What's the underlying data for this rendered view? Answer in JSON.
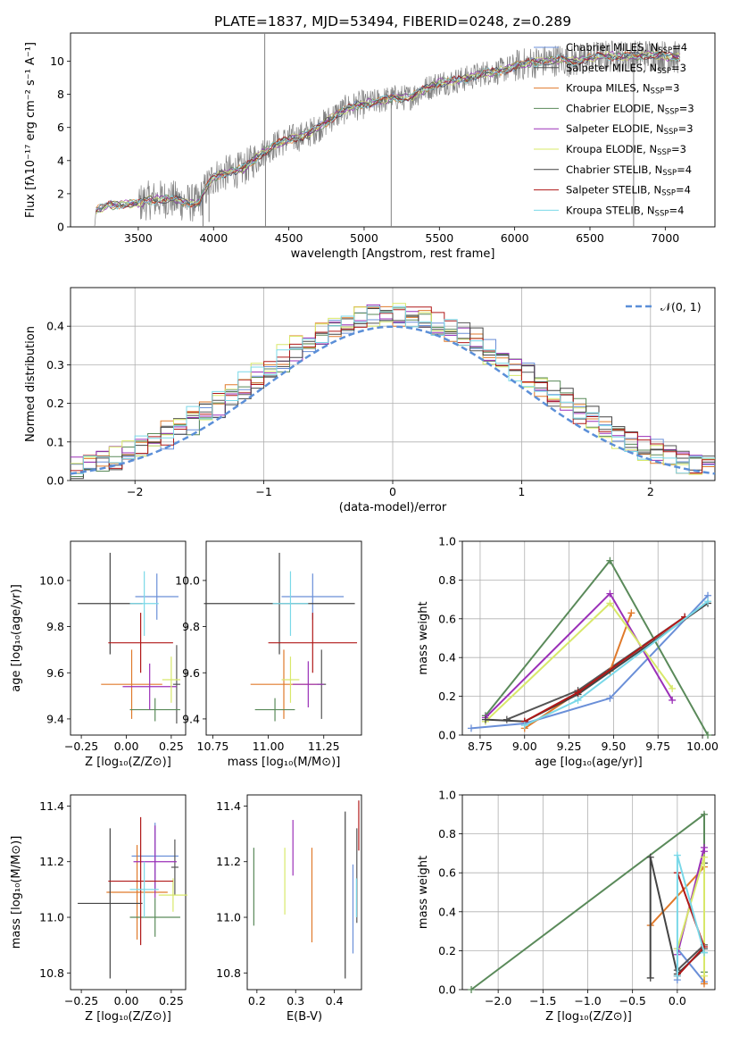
{
  "figure": {
    "title": "PLATE=1837, MJD=53494, FIBERID=0248, z=0.289"
  },
  "colors": {
    "Chabrier MILES": "#6a8fd8",
    "Salpeter MILES": "#555555",
    "Kroupa MILES": "#e07a2b",
    "Chabrier ELODIE": "#5a8a5a",
    "Salpeter ELODIE": "#9b30b8",
    "Kroupa ELODIE": "#d8e86a",
    "Chabrier STELIB": "#444444",
    "Salpeter STELIB": "#b01818",
    "Kroupa STELIB": "#7ad8e8",
    "data_spectrum": "#808080",
    "normal_curve": "#5b8fd8"
  },
  "chart_data": [
    {
      "id": "spectrum",
      "type": "line",
      "xlabel": "wavelength [Angstrom, rest frame]",
      "ylabel": "Flux [fλ10⁻¹⁷ erg cm⁻² s⁻¹ A⁻¹]",
      "xlim": [
        3050,
        7330
      ],
      "ylim": [
        0,
        11.7
      ],
      "xticks": [
        3500,
        4000,
        4500,
        5000,
        5500,
        6000,
        6500,
        7000
      ],
      "yticks": [
        0,
        2,
        4,
        6,
        8,
        10
      ],
      "legend": "top-right",
      "legend_entries": [
        {
          "model": "Chabrier MILES",
          "label": "Chabrier MILES, N",
          "sub": "SSP",
          "tail": "=4"
        },
        {
          "model": "Salpeter MILES",
          "label": "Salpeter MILES, N",
          "sub": "SSP",
          "tail": "=3"
        },
        {
          "model": "Kroupa MILES",
          "label": "Kroupa MILES, N",
          "sub": "SSP",
          "tail": "=3"
        },
        {
          "model": "Chabrier ELODIE",
          "label": "Chabrier ELODIE, N",
          "sub": "SSP",
          "tail": "=3"
        },
        {
          "model": "Salpeter ELODIE",
          "label": "Salpeter ELODIE, N",
          "sub": "SSP",
          "tail": "=3"
        },
        {
          "model": "Kroupa ELODIE",
          "label": "Kroupa ELODIE, N",
          "sub": "SSP",
          "tail": "=3"
        },
        {
          "model": "Chabrier STELIB",
          "label": "Chabrier STELIB, N",
          "sub": "SSP",
          "tail": "=4"
        },
        {
          "model": "Salpeter STELIB",
          "label": "Salpeter STELIB, N",
          "sub": "SSP",
          "tail": "=4"
        },
        {
          "model": "Kroupa STELIB",
          "label": "Kroupa STELIB, N",
          "sub": "SSP",
          "tail": "=4"
        }
      ],
      "continuum": [
        [
          3210,
          0
        ],
        [
          3220,
          1.0
        ],
        [
          3300,
          1.3
        ],
        [
          3500,
          1.4
        ],
        [
          3560,
          1.6
        ],
        [
          3700,
          1.7
        ],
        [
          3800,
          1.5
        ],
        [
          3900,
          1.4
        ],
        [
          3950,
          2.3
        ],
        [
          4000,
          3.0
        ],
        [
          4100,
          3.3
        ],
        [
          4200,
          3.5
        ],
        [
          4300,
          4.3
        ],
        [
          4400,
          4.9
        ],
        [
          4500,
          5.3
        ],
        [
          4600,
          5.5
        ],
        [
          4700,
          6.0
        ],
        [
          4800,
          6.7
        ],
        [
          4900,
          7.2
        ],
        [
          5000,
          7.4
        ],
        [
          5100,
          7.6
        ],
        [
          5200,
          7.8
        ],
        [
          5300,
          7.8
        ],
        [
          5400,
          8.3
        ],
        [
          5500,
          8.7
        ],
        [
          5600,
          8.8
        ],
        [
          5700,
          9.0
        ],
        [
          5800,
          9.3
        ],
        [
          5900,
          9.4
        ],
        [
          6000,
          9.7
        ],
        [
          6100,
          9.9
        ],
        [
          6200,
          10.0
        ],
        [
          6300,
          10.1
        ],
        [
          6400,
          10.0
        ],
        [
          6500,
          10.2
        ],
        [
          6600,
          10.3
        ],
        [
          6700,
          10.3
        ],
        [
          6800,
          10.3
        ],
        [
          6900,
          10.4
        ],
        [
          7000,
          10.3
        ],
        [
          7100,
          10.2
        ]
      ],
      "spikes": [
        [
          4340,
          11.7
        ],
        [
          4345,
          0
        ],
        [
          5180,
          0
        ],
        [
          6790,
          0
        ],
        [
          3930,
          0
        ],
        [
          3970,
          0.3
        ]
      ]
    },
    {
      "id": "residuals",
      "type": "area",
      "xlabel": "(data-model)/error",
      "ylabel": "Normed distribution",
      "xlim": [
        -2.5,
        2.5
      ],
      "ylim": [
        0,
        0.5
      ],
      "xticks": [
        -2,
        -1,
        0,
        1,
        2
      ],
      "yticks": [
        0.0,
        0.1,
        0.2,
        0.3,
        0.4
      ],
      "legend": "top-right",
      "legend_label": "𝒩(0, 1)",
      "bin_width": 0.1,
      "bin_start": -2.5,
      "gauss": {
        "mean": 0,
        "sigma": 1
      }
    },
    {
      "id": "age_vs_Z",
      "type": "scatter",
      "xlabel": "Z [log₁₀(Z/Z⊙)]",
      "ylabel": "age  [log₁₀(age/yr)]",
      "xlim": [
        -0.31,
        0.33
      ],
      "ylim": [
        9.33,
        10.17
      ],
      "xticks": [
        -0.25,
        0.0,
        0.25
      ],
      "xticklabels": [
        "−0.25",
        "0.00",
        "0.25"
      ],
      "yticks": [
        9.4,
        9.6,
        9.8,
        10.0
      ],
      "points": [
        {
          "model": "Chabrier MILES",
          "x": 0.17,
          "xerr": 0.12,
          "y": 9.93,
          "yerr": 0.1
        },
        {
          "model": "Salpeter MILES",
          "x": 0.28,
          "xerr": 0.02,
          "y": 9.55,
          "yerr": 0.17
        },
        {
          "model": "Kroupa MILES",
          "x": 0.03,
          "xerr": 0.17,
          "y": 9.55,
          "yerr": 0.15
        },
        {
          "model": "Chabrier ELODIE",
          "x": 0.16,
          "xerr": 0.14,
          "y": 9.44,
          "yerr": 0.05
        },
        {
          "model": "Salpeter ELODIE",
          "x": 0.13,
          "xerr": 0.15,
          "y": 9.54,
          "yerr": 0.1
        },
        {
          "model": "Kroupa ELODIE",
          "x": 0.25,
          "xerr": 0.05,
          "y": 9.57,
          "yerr": 0.1
        },
        {
          "model": "Chabrier STELIB",
          "x": -0.09,
          "xerr": 0.18,
          "y": 9.9,
          "yerr": 0.22
        },
        {
          "model": "Salpeter STELIB",
          "x": 0.08,
          "xerr": 0.18,
          "y": 9.73,
          "yerr": 0.13
        },
        {
          "model": "Kroupa STELIB",
          "x": 0.1,
          "xerr": 0.08,
          "y": 9.9,
          "yerr": 0.14
        }
      ]
    },
    {
      "id": "age_vs_mass",
      "type": "scatter",
      "xlabel": "mass [log₁₀(M/M⊙)]",
      "ylabel": "",
      "xlim": [
        10.72,
        11.42
      ],
      "ylim": [
        9.33,
        10.17
      ],
      "xticks": [
        10.75,
        11.0,
        11.25
      ],
      "xticklabels": [
        "10.75",
        "11.00",
        "11.25"
      ],
      "yticks": [
        9.4,
        9.6,
        9.8,
        10.0
      ],
      "points": [
        {
          "model": "Chabrier MILES",
          "x": 11.2,
          "xerr": 0.14,
          "y": 9.93,
          "yerr": 0.1
        },
        {
          "model": "Salpeter MILES",
          "x": 11.24,
          "xerr": 0.02,
          "y": 9.55,
          "yerr": 0.15
        },
        {
          "model": "Kroupa MILES",
          "x": 11.07,
          "xerr": 0.15,
          "y": 9.55,
          "yerr": 0.15
        },
        {
          "model": "Chabrier ELODIE",
          "x": 11.03,
          "xerr": 0.09,
          "y": 9.44,
          "yerr": 0.05
        },
        {
          "model": "Salpeter ELODIE",
          "x": 11.18,
          "xerr": 0.07,
          "y": 9.55,
          "yerr": 0.1
        },
        {
          "model": "Kroupa ELODIE",
          "x": 11.1,
          "xerr": 0.04,
          "y": 9.57,
          "yerr": 0.1
        },
        {
          "model": "Chabrier STELIB",
          "x": 11.05,
          "xerr": 0.34,
          "y": 9.9,
          "yerr": 0.22
        },
        {
          "model": "Salpeter STELIB",
          "x": 11.2,
          "xerr": 0.2,
          "y": 9.73,
          "yerr": 0.13
        },
        {
          "model": "Kroupa STELIB",
          "x": 11.1,
          "xerr": 0.08,
          "y": 9.9,
          "yerr": 0.14
        }
      ]
    },
    {
      "id": "weight_vs_age",
      "type": "line",
      "xlabel": "age  [log₁₀(age/yr)]",
      "ylabel": "mass weight",
      "xlim": [
        8.65,
        10.07
      ],
      "ylim": [
        0,
        1
      ],
      "xticks": [
        8.75,
        9.0,
        9.25,
        9.5,
        9.75,
        10.0
      ],
      "xticklabels": [
        "8.75",
        "9.00",
        "9.25",
        "9.50",
        "9.75",
        "10.00"
      ],
      "yticks": [
        0.0,
        0.2,
        0.4,
        0.6,
        0.8,
        1.0
      ],
      "series": [
        {
          "model": "Chabrier MILES",
          "x": [
            8.7,
            9.0,
            9.48,
            10.03
          ],
          "y": [
            0.035,
            0.06,
            0.19,
            0.72
          ]
        },
        {
          "model": "Salpeter MILES",
          "x": [
            8.9,
            9.3,
            9.9
          ],
          "y": [
            0.08,
            0.23,
            0.61
          ]
        },
        {
          "model": "Kroupa MILES",
          "x": [
            9.0,
            9.48,
            9.6
          ],
          "y": [
            0.035,
            0.33,
            0.63
          ]
        },
        {
          "model": "Chabrier ELODIE",
          "x": [
            8.78,
            9.48,
            10.03
          ],
          "y": [
            0.1,
            0.9,
            0.0
          ]
        },
        {
          "model": "Salpeter ELODIE",
          "x": [
            8.78,
            9.48,
            9.83
          ],
          "y": [
            0.09,
            0.73,
            0.18
          ]
        },
        {
          "model": "Kroupa ELODIE",
          "x": [
            8.78,
            9.48,
            9.83
          ],
          "y": [
            0.07,
            0.68,
            0.24
          ]
        },
        {
          "model": "Chabrier STELIB",
          "x": [
            8.78,
            9.0,
            9.3,
            10.03
          ],
          "y": [
            0.08,
            0.07,
            0.21,
            0.68
          ]
        },
        {
          "model": "Salpeter STELIB",
          "x": [
            9.0,
            9.3,
            9.9
          ],
          "y": [
            0.07,
            0.22,
            0.61
          ]
        },
        {
          "model": "Kroupa STELIB",
          "x": [
            9.0,
            9.3,
            10.03
          ],
          "y": [
            0.05,
            0.18,
            0.69
          ]
        }
      ]
    },
    {
      "id": "mass_vs_Z",
      "type": "scatter",
      "xlabel": "Z [log₁₀(Z/Z⊙)]",
      "ylabel": "mass [log₁₀(M/M⊙)]",
      "xlim": [
        -0.31,
        0.33
      ],
      "ylim": [
        10.74,
        11.44
      ],
      "xticks": [
        -0.25,
        0.0,
        0.25
      ],
      "xticklabels": [
        "−0.25",
        "0.00",
        "0.25"
      ],
      "yticks": [
        10.8,
        11.0,
        11.2,
        11.4
      ],
      "points": [
        {
          "model": "Chabrier MILES",
          "x": 0.16,
          "xerr": 0.13,
          "y": 11.22,
          "yerr": 0.12
        },
        {
          "model": "Salpeter MILES",
          "x": 0.27,
          "xerr": 0.02,
          "y": 11.18,
          "yerr": 0.1
        },
        {
          "model": "Kroupa MILES",
          "x": 0.06,
          "xerr": 0.17,
          "y": 11.09,
          "yerr": 0.17
        },
        {
          "model": "Chabrier ELODIE",
          "x": 0.16,
          "xerr": 0.14,
          "y": 11.0,
          "yerr": 0.07
        },
        {
          "model": "Salpeter ELODIE",
          "x": 0.16,
          "xerr": 0.12,
          "y": 11.2,
          "yerr": 0.13
        },
        {
          "model": "Kroupa ELODIE",
          "x": 0.26,
          "xerr": 0.08,
          "y": 11.08,
          "yerr": 0.06
        },
        {
          "model": "Chabrier STELIB",
          "x": -0.09,
          "xerr": 0.18,
          "y": 11.05,
          "yerr": 0.27
        },
        {
          "model": "Salpeter STELIB",
          "x": 0.08,
          "xerr": 0.18,
          "y": 11.13,
          "yerr": 0.23
        },
        {
          "model": "Kroupa STELIB",
          "x": 0.1,
          "xerr": 0.08,
          "y": 11.1,
          "yerr": 0.1
        }
      ]
    },
    {
      "id": "mass_vs_EBV",
      "type": "scatter",
      "xlabel": "E(B-V)",
      "ylabel": "",
      "xlim": [
        0.175,
        0.47
      ],
      "ylim": [
        10.74,
        11.44
      ],
      "xticks": [
        0.2,
        0.3,
        0.4
      ],
      "xticklabels": [
        "0.2",
        "0.3",
        "0.4"
      ],
      "yticks": [
        10.8,
        11.0,
        11.2,
        11.4
      ],
      "points": [
        {
          "model": "Chabrier MILES",
          "x": 0.448,
          "y": 11.03,
          "yerr": 0.16
        },
        {
          "model": "Salpeter MILES",
          "x": 0.458,
          "y": 11.15,
          "yerr": 0.17
        },
        {
          "model": "Kroupa MILES",
          "x": 0.342,
          "y": 11.08,
          "yerr": 0.17
        },
        {
          "model": "Chabrier ELODIE",
          "x": 0.192,
          "y": 11.11,
          "yerr": 0.14
        },
        {
          "model": "Salpeter ELODIE",
          "x": 0.293,
          "y": 11.25,
          "yerr": 0.1
        },
        {
          "model": "Kroupa ELODIE",
          "x": 0.272,
          "y": 11.13,
          "yerr": 0.12
        },
        {
          "model": "Chabrier STELIB",
          "x": 0.428,
          "y": 11.08,
          "yerr": 0.3
        },
        {
          "model": "Salpeter STELIB",
          "x": 0.463,
          "y": 11.33,
          "yerr": 0.09
        },
        {
          "model": "Kroupa STELIB",
          "x": 0.457,
          "y": 11.07,
          "yerr": 0.07
        }
      ]
    },
    {
      "id": "weight_vs_Z",
      "type": "line",
      "xlabel": "Z [log₁₀(Z/Z⊙)]",
      "ylabel": "mass weight",
      "xlim": [
        -2.4,
        0.42
      ],
      "ylim": [
        0,
        1
      ],
      "xticks": [
        -2.0,
        -1.5,
        -1.0,
        -0.5,
        0.0
      ],
      "xticklabels": [
        "−2.0",
        "−1.5",
        "−1.0",
        "−0.5",
        "0.0"
      ],
      "yticks": [
        0.0,
        0.2,
        0.4,
        0.6,
        0.8,
        1.0
      ],
      "series": [
        {
          "model": "Chabrier MILES",
          "x": [
            0.0,
            0.0,
            0.3,
            0.3
          ],
          "y": [
            0.05,
            0.21,
            0.04,
            0.19
          ]
        },
        {
          "model": "Salpeter MILES",
          "x": [
            0.0,
            0.3,
            0.3
          ],
          "y": [
            0.1,
            0.23,
            0.65
          ]
        },
        {
          "model": "Kroupa MILES",
          "x": [
            -0.3,
            0.3,
            0.3
          ],
          "y": [
            0.33,
            0.63,
            0.03
          ]
        },
        {
          "model": "Chabrier ELODIE",
          "x": [
            -2.3,
            0.3,
            0.3
          ],
          "y": [
            0.0,
            0.9,
            0.09
          ]
        },
        {
          "model": "Salpeter ELODIE",
          "x": [
            0.0,
            0.3,
            0.3
          ],
          "y": [
            0.18,
            0.73,
            0.71
          ]
        },
        {
          "model": "Kroupa ELODIE",
          "x": [
            0.0,
            0.3,
            0.3
          ],
          "y": [
            0.21,
            0.68,
            0.07
          ]
        },
        {
          "model": "Chabrier STELIB",
          "x": [
            -0.3,
            -0.3,
            0.0,
            0.3
          ],
          "y": [
            0.06,
            0.68,
            0.08,
            0.21
          ]
        },
        {
          "model": "Salpeter STELIB",
          "x": [
            0.0,
            0.3,
            0.0
          ],
          "y": [
            0.6,
            0.22,
            0.07
          ]
        },
        {
          "model": "Kroupa STELIB",
          "x": [
            0.0,
            0.0,
            0.3
          ],
          "y": [
            0.07,
            0.69,
            0.19
          ]
        }
      ]
    }
  ]
}
